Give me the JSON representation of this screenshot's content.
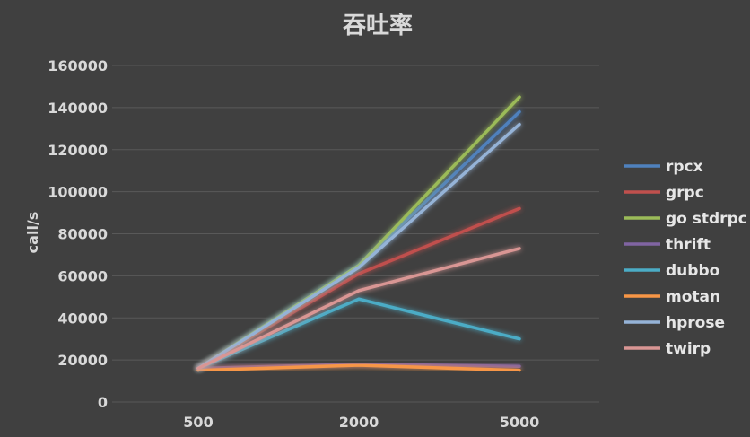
{
  "chart_data": {
    "type": "line",
    "title": "吞吐率",
    "xlabel": "",
    "ylabel": "call/s",
    "categories": [
      "500",
      "2000",
      "5000"
    ],
    "ylim": [
      0,
      160000
    ],
    "yticks": [
      "0",
      "20000",
      "40000",
      "60000",
      "80000",
      "100000",
      "120000",
      "140000",
      "160000"
    ],
    "grid": true,
    "legend_position": "right",
    "series": [
      {
        "name": "rpcx",
        "color": "#4f81bd",
        "values": [
          16000,
          65000,
          138000
        ]
      },
      {
        "name": "grpc",
        "color": "#c0504d",
        "values": [
          16000,
          61000,
          92000
        ]
      },
      {
        "name": "go stdrpc",
        "color": "#9bbb59",
        "values": [
          16000,
          65000,
          145000
        ]
      },
      {
        "name": "thrift",
        "color": "#8064a2",
        "values": [
          16000,
          18000,
          17000
        ]
      },
      {
        "name": "dubbo",
        "color": "#4bacc6",
        "values": [
          16000,
          49000,
          30000
        ]
      },
      {
        "name": "motan",
        "color": "#f79646",
        "values": [
          15000,
          17500,
          15000
        ]
      },
      {
        "name": "hprose",
        "color": "#95b3d7",
        "values": [
          16000,
          64000,
          132000
        ]
      },
      {
        "name": "twirp",
        "color": "#d99694",
        "values": [
          16000,
          53000,
          73000
        ]
      }
    ]
  }
}
